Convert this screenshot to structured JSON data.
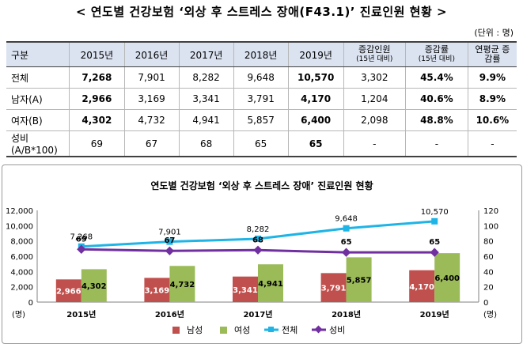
{
  "page_title": "< 연도별 건강보험 ‘외상 후 스트레스 장애(F43.1)’ 진료인원 현황 >",
  "unit_note": "(단위 : 명)",
  "table": {
    "headers": [
      "구분",
      "2015년",
      "2016년",
      "2017년",
      "2018년",
      "2019년",
      "증감인원",
      "증감률",
      "연평균 증감률"
    ],
    "header_subs": [
      "(15년 대비)",
      "(15년 대비)"
    ],
    "rows": [
      {
        "label": "전체",
        "cells": [
          "7,268",
          "7,901",
          "8,282",
          "9,648",
          "10,570",
          "3,302",
          "45.4%",
          "9.9%"
        ]
      },
      {
        "label": "남자(A)",
        "cells": [
          "2,966",
          "3,169",
          "3,341",
          "3,791",
          "4,170",
          "1,204",
          "40.6%",
          "8.9%"
        ]
      },
      {
        "label": "여자(B)",
        "cells": [
          "4,302",
          "4,732",
          "4,941",
          "5,857",
          "6,400",
          "2,098",
          "48.8%",
          "10.6%"
        ]
      },
      {
        "label": "성비(A/B*100)",
        "cells": [
          "69",
          "67",
          "68",
          "65",
          "65",
          "-",
          "-",
          "-"
        ]
      }
    ]
  },
  "chart_data": {
    "type": "bar",
    "title": "연도별 건강보험 ‘외상 후 스트레스 장애’ 진료인원 현황",
    "categories": [
      "2015년",
      "2016년",
      "2017년",
      "2018년",
      "2019년"
    ],
    "series": [
      {
        "name": "남성",
        "kind": "bar",
        "axis": "left",
        "color": "#c0504d",
        "values": [
          2966,
          3169,
          3341,
          3791,
          4170
        ],
        "labels": [
          "2,966",
          "3,169",
          "3,341",
          "3,791",
          "4,170"
        ]
      },
      {
        "name": "여성",
        "kind": "bar",
        "axis": "left",
        "color": "#9bbb59",
        "values": [
          4302,
          4732,
          4941,
          5857,
          6400
        ],
        "labels": [
          "4,302",
          "4,732",
          "4,941",
          "5,857",
          "6,400"
        ]
      },
      {
        "name": "전체",
        "kind": "line",
        "axis": "left",
        "color": "#1fb4e6",
        "values": [
          7268,
          7901,
          8282,
          9648,
          10570
        ],
        "labels": [
          "7,268",
          "7,901",
          "8,282",
          "9,648",
          "10,570"
        ]
      },
      {
        "name": "성비",
        "kind": "line",
        "axis": "right",
        "color": "#7030a0",
        "values": [
          69,
          67,
          68,
          65,
          65
        ],
        "labels": [
          "69",
          "67",
          "68",
          "65",
          "65"
        ]
      }
    ],
    "y_left": {
      "min": 0,
      "max": 12000,
      "ticks": [
        "0",
        "2,000",
        "4,000",
        "6,000",
        "8,000",
        "10,000",
        "12,000"
      ],
      "unit": "(명)"
    },
    "y_right": {
      "min": 0,
      "max": 120,
      "ticks": [
        "0",
        "20",
        "40",
        "60",
        "80",
        "100",
        "120"
      ],
      "unit": "(명)"
    },
    "grid": false,
    "legend_position": "bottom"
  }
}
